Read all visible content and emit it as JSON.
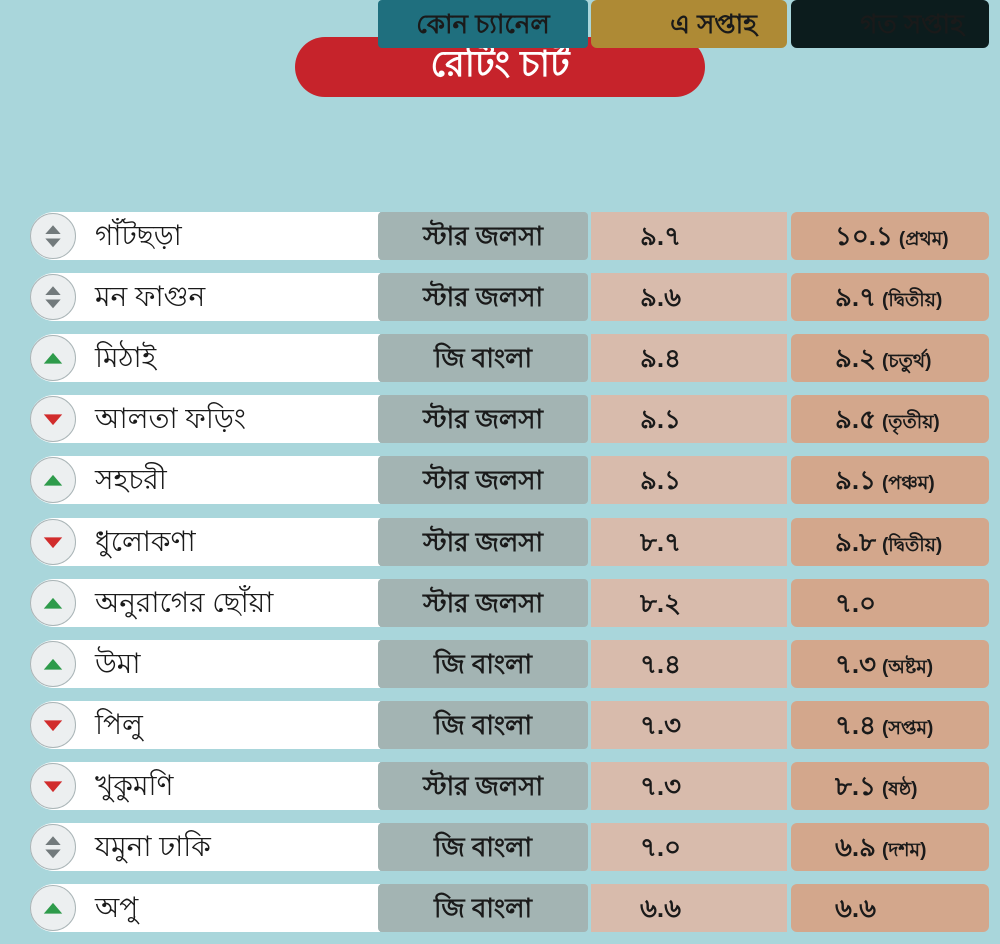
{
  "colors": {
    "background": "#a9d6db",
    "title_bg": "#c6232b",
    "channel_header_bg": "#1f6f7e",
    "this_week_header_bg": "#ae8a35",
    "last_week_header_bg": "#0c1c1d",
    "channel_cell_bg": "#a3b4b3",
    "this_week_cell_bg": "#d8bbac",
    "last_week_cell_bg": "#d3a78c",
    "up_arrow": "#2e9b4b",
    "down_arrow": "#d12c2c",
    "neutral_arrow": "#727a7c"
  },
  "chart_data": {
    "type": "table",
    "title": "রেটিং চার্ট",
    "columns": [
      "কোন চ্যানেল",
      "এ সপ্তাহ",
      "গত সপ্তাহ"
    ],
    "rows": [
      {
        "show": "গাঁটছড়া",
        "channel": "স্টার জলসা",
        "this_week": "৯.৭",
        "last_week": "১০.১",
        "last_week_rank": "(প্রথম)",
        "trend_icon": "up-down-triangle-icon"
      },
      {
        "show": "মন ফাগুন",
        "channel": "স্টার জলসা",
        "this_week": "৯.৬",
        "last_week": "৯.৭",
        "last_week_rank": "(দ্বিতীয়)",
        "trend_icon": "up-down-triangle-icon"
      },
      {
        "show": "মিঠাই",
        "channel": "জি বাংলা",
        "this_week": "৯.৪",
        "last_week": "৯.২",
        "last_week_rank": "(চতুর্থ)",
        "trend_icon": "up-triangle-icon"
      },
      {
        "show": "আলতা ফড়িং",
        "channel": "স্টার জলসা",
        "this_week": "৯.১",
        "last_week": "৯.৫",
        "last_week_rank": "(তৃতীয়)",
        "trend_icon": "down-triangle-icon"
      },
      {
        "show": "সহচরী",
        "channel": "স্টার জলসা",
        "this_week": "৯.১",
        "last_week": "৯.১",
        "last_week_rank": "(পঞ্চম)",
        "trend_icon": "up-triangle-icon"
      },
      {
        "show": "ধুলোকণা",
        "channel": "স্টার জলসা",
        "this_week": "৮.৭",
        "last_week": "৯.৮",
        "last_week_rank": "(দ্বিতীয়)",
        "trend_icon": "down-triangle-icon"
      },
      {
        "show": "অনুরাগের ছোঁয়া",
        "channel": "স্টার জলসা",
        "this_week": "৮.২",
        "last_week": "৭.০",
        "trend_icon": "up-triangle-icon"
      },
      {
        "show": "উমা",
        "channel": "জি বাংলা",
        "this_week": "৭.৪",
        "last_week": "৭.৩",
        "last_week_rank": "(অষ্টম)",
        "trend_icon": "up-triangle-icon"
      },
      {
        "show": "পিলু",
        "channel": "জি বাংলা",
        "this_week": "৭.৩",
        "last_week": "৭.৪",
        "last_week_rank": "(সপ্তম)",
        "trend_icon": "down-triangle-icon"
      },
      {
        "show": "খুকুমণি",
        "channel": "স্টার জলসা",
        "this_week": "৭.৩",
        "last_week": "৮.১",
        "last_week_rank": "(ষষ্ঠ)",
        "trend_icon": "down-triangle-icon"
      },
      {
        "show": "যমুনা ঢাকি",
        "channel": "জি বাংলা",
        "this_week": "৭.০",
        "last_week": "৬.৯",
        "last_week_rank": "(দশম)",
        "trend_icon": "up-down-triangle-icon"
      },
      {
        "show": "অপু",
        "channel": "জি বাংলা",
        "this_week": "৬.৬",
        "last_week": "৬.৬",
        "trend_icon": "up-triangle-icon"
      }
    ]
  }
}
